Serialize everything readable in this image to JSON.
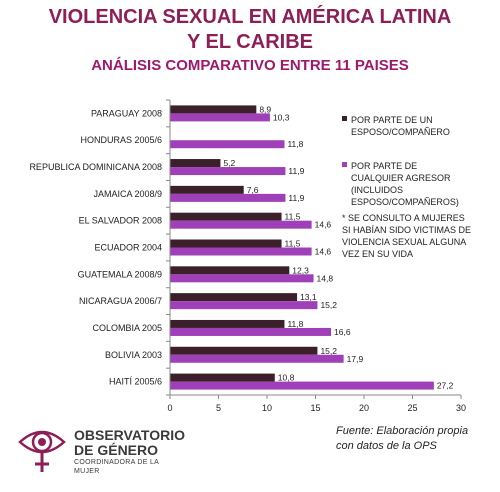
{
  "titles": {
    "line1": "VIOLENCIA SEXUAL EN AMÉRICA LATINA",
    "line2": "Y EL CARIBE",
    "line3": "ANÁLISIS COMPARATIVO ENTRE 11 PAISES"
  },
  "legend": {
    "spouse": "POR PARTE DE UN ESPOSO/COMPAÑERO",
    "any": "POR PARTE DE CUALQUIER AGRESOR (INCLUIDOS ESPOSO/COMPAÑEROS)"
  },
  "note": "* SE CONSULTO  A MUJERES SI HABÍAN SIDO VICTIMAS DE VIOLENCIA SEXUAL ALGUNA VEZ EN SU VIDA",
  "source": {
    "line1": "Fuente: Elaboración propia",
    "line2": "con datos de la OPS"
  },
  "logo": {
    "line1": "OBSERVATORIO",
    "line2": "DE GÉNERO",
    "line3": "COORDINADORA DE LA MUJER"
  },
  "colors": {
    "spouse": "#3b1f2a",
    "any": "#a040b8",
    "title": "#8e1f56"
  },
  "chart_data": {
    "type": "bar",
    "orientation": "horizontal",
    "categories": [
      "PARAGUAY 2008",
      "HONDURAS 2005/6",
      "REPUBLICA DOMINICANA 2008",
      "JAMAICA 2008/9",
      "EL SALVADOR 2008",
      "ECUADOR 2004",
      "GUATEMALA 2008/9",
      "NICARAGUA 2006/7",
      "COLOMBIA 2005",
      "BOLIVIA 2003",
      "HAITÍ 2005/6"
    ],
    "series": [
      {
        "name": "POR PARTE DE UN ESPOSO/COMPAÑERO",
        "values": [
          8.9,
          null,
          5.2,
          7.6,
          11.5,
          11.5,
          12.3,
          13.1,
          11.8,
          15.2,
          10.8
        ],
        "labels": [
          "8,9",
          "",
          "5,2",
          "7,6",
          "11,5",
          "11,5",
          "12,3",
          "13,1",
          "11,8",
          "15,2",
          "10,8"
        ]
      },
      {
        "name": "POR PARTE DE CUALQUIER AGRESOR (INCLUIDOS ESPOSO/COMPAÑEROS)",
        "values": [
          10.3,
          11.8,
          11.9,
          11.9,
          14.6,
          14.6,
          14.8,
          15.2,
          16.6,
          17.9,
          27.2
        ],
        "labels": [
          "10,3",
          "11,8",
          "11,9",
          "11,9",
          "14,6",
          "14,6",
          "14,8",
          "15,2",
          "16,6",
          "17,9",
          "27,2"
        ]
      }
    ],
    "xticks": [
      "0",
      "5",
      "10",
      "15",
      "20",
      "25",
      "30"
    ],
    "xlim": [
      0,
      30
    ],
    "grid": false,
    "legend_position": "right"
  }
}
